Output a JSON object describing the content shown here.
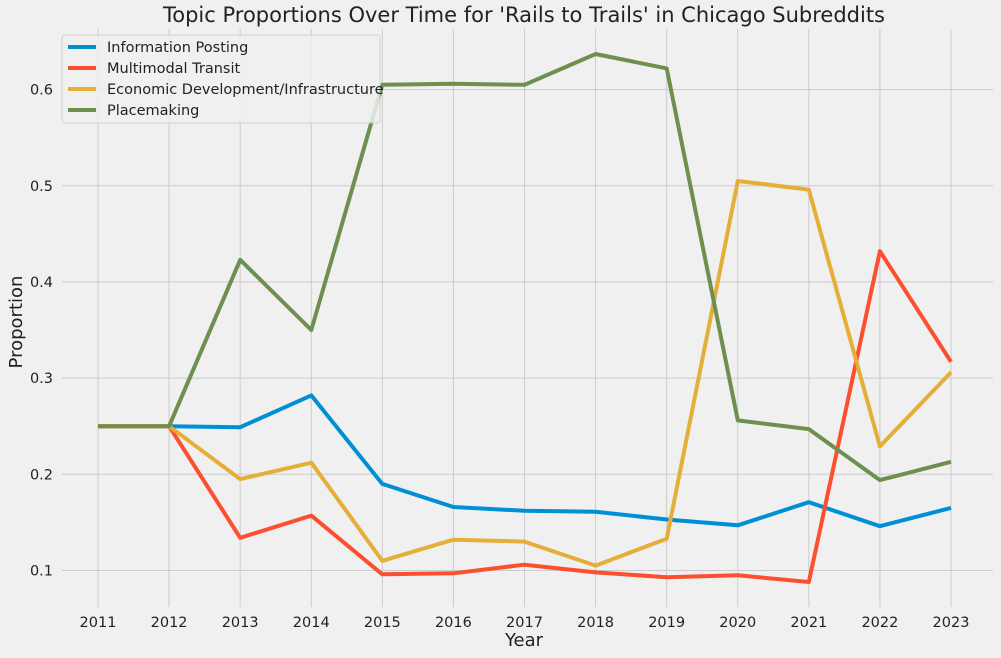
{
  "chart_data": {
    "type": "line",
    "title": "Topic Proportions Over Time for 'Rails to Trails' in Chicago Subreddits",
    "xlabel": "Year",
    "ylabel": "Proportion",
    "x": [
      "2011",
      "2012",
      "2013",
      "2014",
      "2015",
      "2016",
      "2017",
      "2018",
      "2019",
      "2020",
      "2021",
      "2022",
      "2023"
    ],
    "ylim": [
      0.062,
      0.663
    ],
    "yticks": [
      0.1,
      0.2,
      0.3,
      0.4,
      0.5,
      0.6
    ],
    "grid": true,
    "legend_position": "top-left",
    "series": [
      {
        "name": "Information Posting",
        "color": "#008fd5",
        "values": [
          0.25,
          0.25,
          0.249,
          0.282,
          0.19,
          0.166,
          0.162,
          0.161,
          0.153,
          0.147,
          0.171,
          0.146,
          0.165
        ]
      },
      {
        "name": "Multimodal Transit",
        "color": "#fc4f30",
        "values": [
          0.25,
          0.25,
          0.134,
          0.157,
          0.096,
          0.097,
          0.106,
          0.098,
          0.093,
          0.095,
          0.088,
          0.432,
          0.317
        ]
      },
      {
        "name": "Economic Development/Infrastructure",
        "color": "#e5ae38",
        "values": [
          0.25,
          0.25,
          0.195,
          0.212,
          0.11,
          0.132,
          0.13,
          0.105,
          0.133,
          0.505,
          0.496,
          0.229,
          0.306
        ]
      },
      {
        "name": "Placemaking",
        "color": "#6d904f",
        "values": [
          0.25,
          0.25,
          0.423,
          0.35,
          0.605,
          0.606,
          0.605,
          0.637,
          0.622,
          0.256,
          0.247,
          0.194,
          0.213
        ]
      }
    ]
  }
}
